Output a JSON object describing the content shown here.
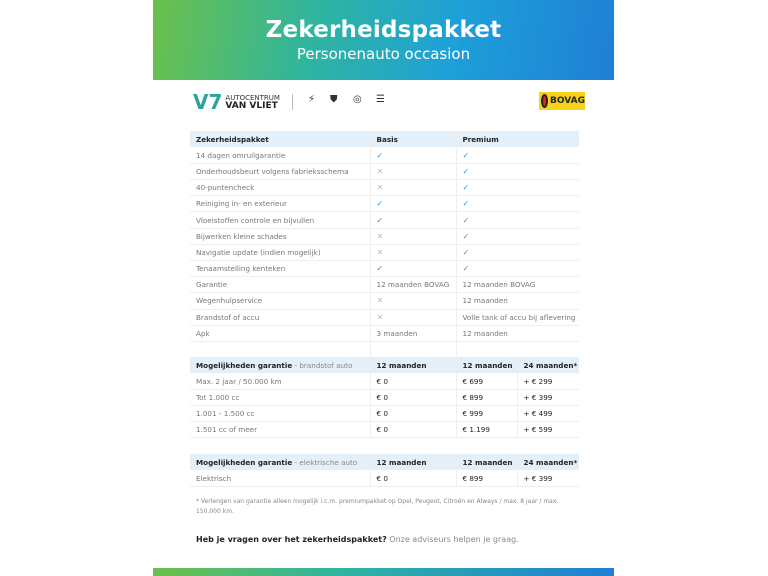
{
  "header": {
    "title": "Zekerheidspakket",
    "subtitle": "Personenauto occasion"
  },
  "logos": {
    "dealer_line1": "AUTOCENTRUM",
    "dealer_line2": "VAN VLIET",
    "brands": [
      "opel",
      "peugeot",
      "citroen",
      "always"
    ],
    "bovag": "BOVAG"
  },
  "colors": {
    "check": "#3a8fd0",
    "header_bg": "#e3f0fa",
    "gradient_start": "#6cc04a",
    "gradient_end": "#1f7fd6"
  },
  "package_table": {
    "headers": [
      "Zekerheidspakket",
      "Basis",
      "Premium"
    ],
    "rows": [
      [
        "14 dagen omruilgarantie",
        "check",
        "check"
      ],
      [
        "Onderhoudsbeurt volgens fabrieksschema",
        "cross",
        "check"
      ],
      [
        "40-puntencheck",
        "cross",
        "check"
      ],
      [
        "Reiniging in- en exterieur",
        "check",
        "check"
      ],
      [
        "Vloeistoffen controle en bijvullen",
        "check",
        "check"
      ],
      [
        "Bijwerken kleine schades",
        "cross",
        "check"
      ],
      [
        "Navigatie update (indien mogelijk)",
        "cross",
        "check"
      ],
      [
        "Tenaamstelling kenteken",
        "check",
        "check"
      ],
      [
        "Garantie",
        "12 maanden BOVAG",
        "12 maanden BOVAG"
      ],
      [
        "Wegenhulpservice",
        "cross",
        "12 maanden"
      ],
      [
        "Brandstof of accu",
        "cross",
        "Volle tank of accu bij aflevering"
      ],
      [
        "Apk",
        "3 maanden",
        "12 maanden"
      ]
    ]
  },
  "fuel_table": {
    "title": "Mogelijkheden garantie",
    "subtitle": " - brandstof auto",
    "headers": [
      "12 maanden",
      "12 maanden",
      "24 maanden*"
    ],
    "rows": [
      [
        "Max. 2 jaar / 50.000 km",
        "€ 0",
        "€ 699",
        "+ € 299"
      ],
      [
        "Tot 1.000 cc",
        "€ 0",
        "€ 899",
        "+ € 399"
      ],
      [
        "1.001 - 1.500 cc",
        "€ 0",
        "€ 999",
        "+ € 499"
      ],
      [
        "1.501 cc of meer",
        "€ 0",
        "€ 1.199",
        "+ € 599"
      ]
    ]
  },
  "electric_table": {
    "title": "Mogelijkheden garantie",
    "subtitle": " - elektrische auto",
    "headers": [
      "12 maanden",
      "12 maanden",
      "24 maanden*"
    ],
    "rows": [
      [
        "Elektrisch",
        "€ 0",
        "€ 899",
        "+ € 399"
      ]
    ]
  },
  "footnote": "* Verlengen van garantie alleen mogelijk i.c.m. premiumpakket op Opel, Peugeot, Citroën en Always / max. 8 jaar / max. 150.000 km.",
  "question": {
    "bold": "Heb je vragen over het zekerheidspakket?",
    "text": " Onze adviseurs helpen je graag."
  }
}
